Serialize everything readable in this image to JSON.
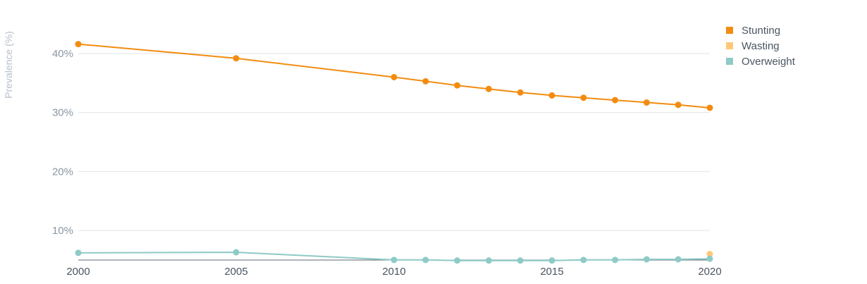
{
  "chart_data": {
    "type": "line",
    "title": "",
    "xlabel": "",
    "ylabel": "Prevalence (%)",
    "x": [
      2000,
      2005,
      2010,
      2011,
      2012,
      2013,
      2014,
      2015,
      2016,
      2017,
      2018,
      2019,
      2020
    ],
    "xticks": [
      2000,
      2005,
      2010,
      2015,
      2020
    ],
    "xtick_labels": [
      "2000",
      "2005",
      "2010",
      "2015",
      "2020"
    ],
    "yticks": [
      10,
      20,
      30,
      40
    ],
    "ytick_labels": [
      "10%",
      "20%",
      "30%",
      "40%"
    ],
    "xlim": [
      2000,
      2020
    ],
    "ylim": [
      5,
      45
    ],
    "grid": "horizontal",
    "legend_position": "top-right",
    "series": [
      {
        "name": "Stunting",
        "color": "#f28c0f",
        "values": [
          41.6,
          39.2,
          36.0,
          35.3,
          34.6,
          34.0,
          33.4,
          32.9,
          32.5,
          32.1,
          31.7,
          31.3,
          30.8
        ]
      },
      {
        "name": "Wasting",
        "color": "#ffc878",
        "values": [
          null,
          null,
          null,
          null,
          null,
          null,
          null,
          null,
          null,
          null,
          null,
          null,
          6.0
        ]
      },
      {
        "name": "Overweight",
        "color": "#8ecac6",
        "values": [
          6.2,
          6.3,
          5.0,
          5.0,
          4.9,
          4.9,
          4.9,
          4.9,
          5.0,
          5.0,
          5.1,
          5.1,
          5.2
        ]
      }
    ]
  }
}
